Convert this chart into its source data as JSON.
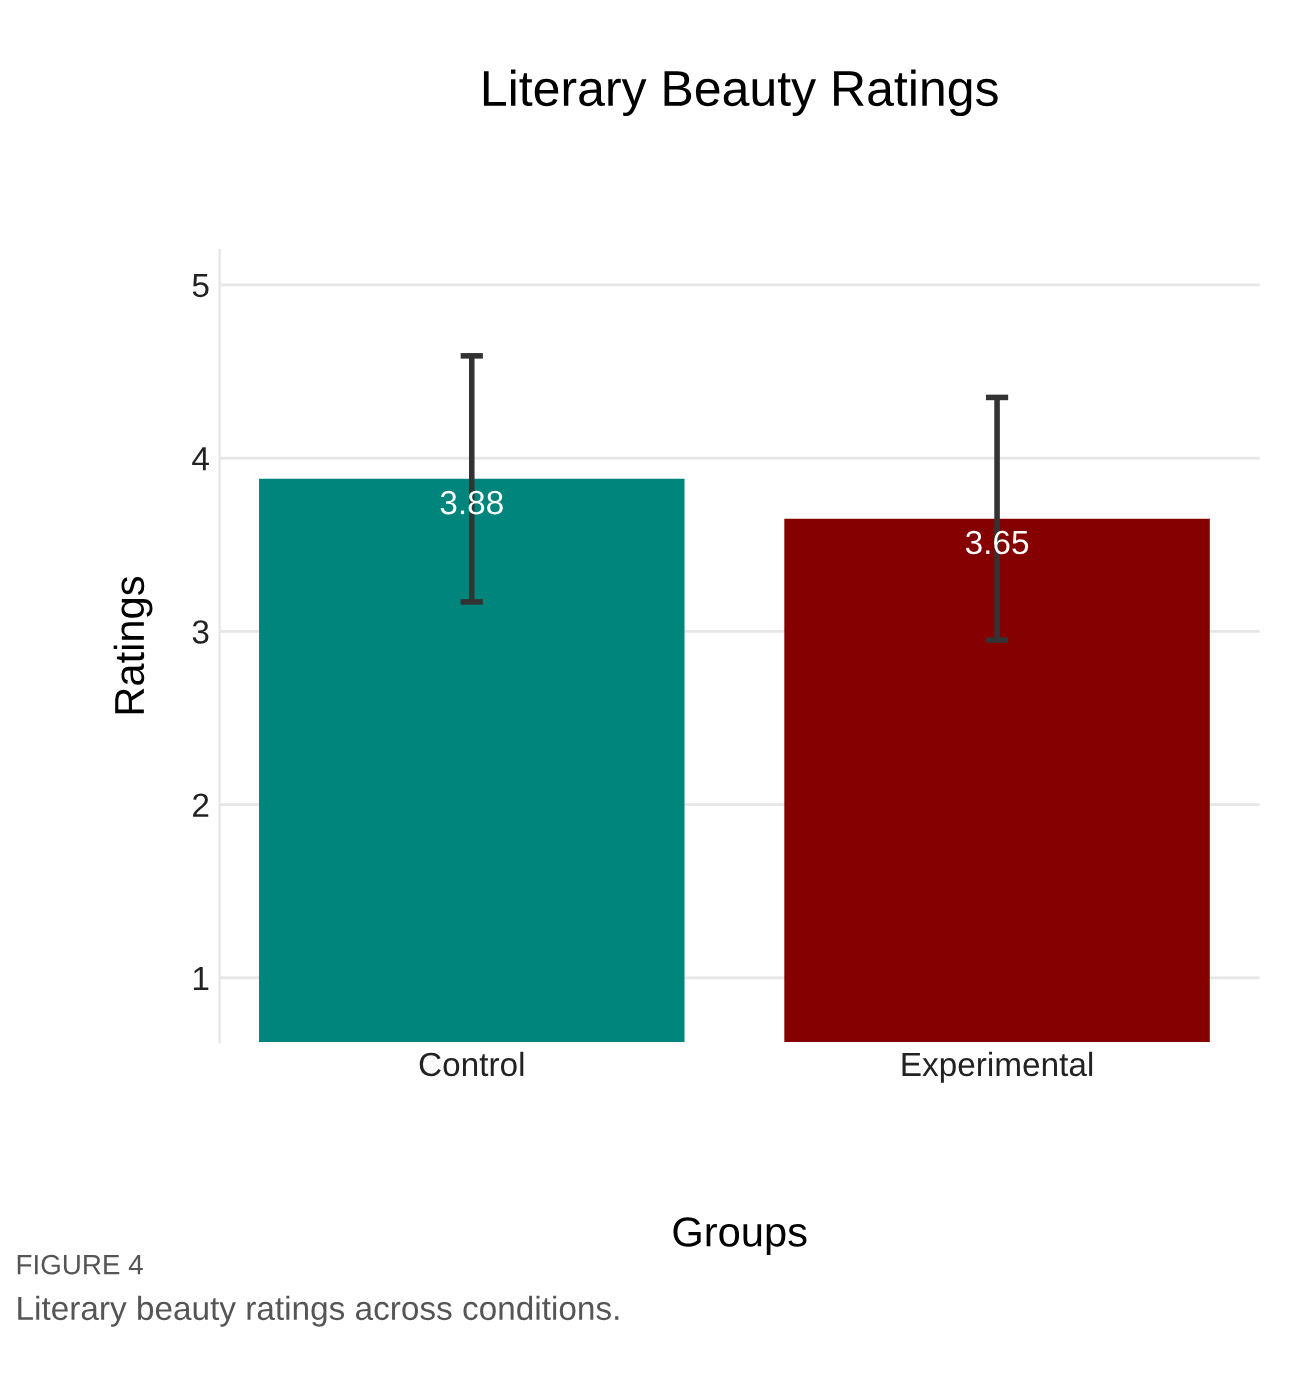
{
  "chart_data": {
    "type": "bar",
    "title": "Literary Beauty Ratings",
    "xlabel": "Groups",
    "ylabel": "Ratings",
    "categories": [
      "Control",
      "Experimental"
    ],
    "values": [
      3.88,
      3.65
    ],
    "colors": [
      "#00857c",
      "#850000"
    ],
    "errors": [
      0.71,
      0.7
    ],
    "ylim": [
      0.63,
      5.2
    ],
    "yticks": [
      1,
      2,
      3,
      4,
      5
    ],
    "grid": "y",
    "data_labels": true,
    "annotations": [
      "FIGURE 4",
      "Literary beauty ratings across conditions."
    ]
  }
}
